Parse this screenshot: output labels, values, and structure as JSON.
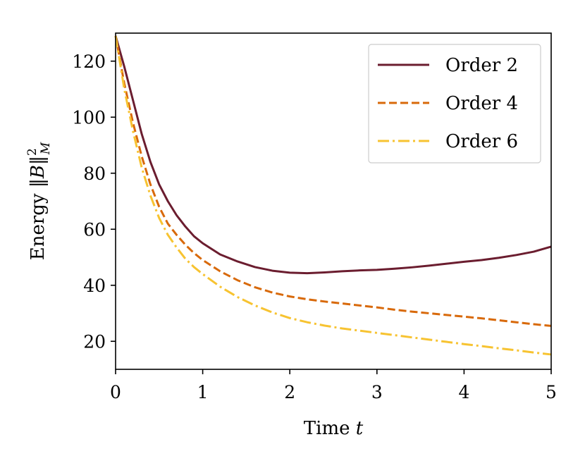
{
  "chart_data": {
    "type": "line",
    "title": "",
    "xlabel": "Time t",
    "xlabel_parts": {
      "text": "Time ",
      "var": "t"
    },
    "ylabel": "Energy ‖B‖²_M",
    "ylabel_parts": {
      "text": "Energy ",
      "open": "‖",
      "var": "B",
      "close": "‖",
      "sup": "2",
      "sub": "M"
    },
    "xlim": [
      0,
      5
    ],
    "ylim": [
      10,
      130
    ],
    "xticks": [
      0,
      1,
      2,
      3,
      4,
      5
    ],
    "yticks": [
      20,
      40,
      60,
      80,
      100,
      120
    ],
    "grid": false,
    "legend_position": "top-right",
    "series": [
      {
        "name": "Order 2",
        "color": "#6b1d2f",
        "style": "solid",
        "x": [
          0,
          0.1,
          0.2,
          0.3,
          0.4,
          0.5,
          0.6,
          0.7,
          0.8,
          0.9,
          1.0,
          1.2,
          1.4,
          1.6,
          1.8,
          2.0,
          2.2,
          2.4,
          2.6,
          2.8,
          3.0,
          3.2,
          3.4,
          3.6,
          3.8,
          4.0,
          4.2,
          4.4,
          4.6,
          4.8,
          5.0
        ],
        "y": [
          129,
          118,
          106,
          94,
          84,
          76,
          70,
          65,
          61,
          57.5,
          55,
          51,
          48.5,
          46.5,
          45.2,
          44.5,
          44.3,
          44.6,
          45,
          45.3,
          45.5,
          45.9,
          46.4,
          47,
          47.7,
          48.4,
          49,
          49.8,
          50.8,
          52,
          53.8
        ]
      },
      {
        "name": "Order 4",
        "color": "#d8690a",
        "style": "dashed",
        "x": [
          0,
          0.1,
          0.2,
          0.3,
          0.4,
          0.5,
          0.6,
          0.7,
          0.8,
          0.9,
          1.0,
          1.2,
          1.4,
          1.6,
          1.8,
          2.0,
          2.2,
          2.4,
          2.6,
          2.8,
          3.0,
          3.2,
          3.4,
          3.6,
          3.8,
          4.0,
          4.2,
          4.4,
          4.6,
          4.8,
          5.0
        ],
        "y": [
          129,
          112,
          98,
          86,
          76,
          68,
          62,
          58,
          54.5,
          51.5,
          49,
          45,
          41.8,
          39.3,
          37.4,
          36,
          35,
          34.2,
          33.5,
          32.8,
          32.1,
          31.3,
          30.6,
          30,
          29.4,
          28.8,
          28.2,
          27.5,
          26.8,
          26.1,
          25.5
        ]
      },
      {
        "name": "Order 6",
        "color": "#f7c331",
        "style": "dashdot",
        "x": [
          0,
          0.1,
          0.2,
          0.3,
          0.4,
          0.5,
          0.6,
          0.7,
          0.8,
          0.9,
          1.0,
          1.2,
          1.4,
          1.6,
          1.8,
          2.0,
          2.2,
          2.4,
          2.6,
          2.8,
          3.0,
          3.2,
          3.4,
          3.6,
          3.8,
          4.0,
          4.2,
          4.4,
          4.6,
          4.8,
          5.0
        ],
        "y": [
          129,
          110,
          95,
          82,
          72,
          64,
          58,
          53.5,
          49.5,
          46.5,
          44,
          39.5,
          35.8,
          32.8,
          30.3,
          28.3,
          26.8,
          25.6,
          24.6,
          23.8,
          23,
          22.2,
          21.4,
          20.6,
          19.8,
          19,
          18.3,
          17.5,
          16.8,
          16,
          15.3
        ]
      }
    ]
  }
}
